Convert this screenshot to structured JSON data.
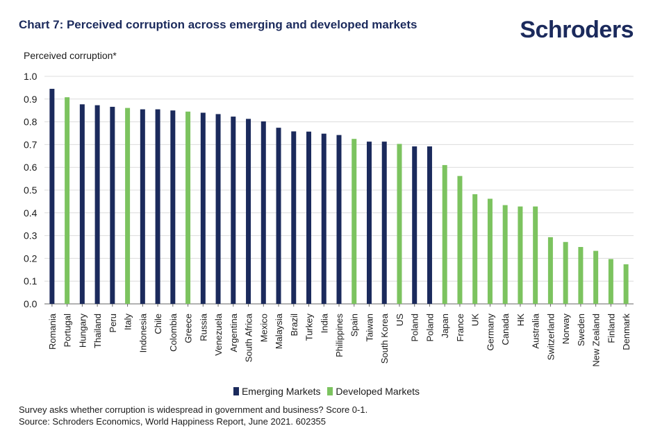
{
  "header": {
    "title": "Chart 7: Perceived corruption across emerging and developed markets",
    "brand": "Schroders"
  },
  "footer": {
    "note": "Survey asks whether corruption is widespread in government and business? Score 0-1.",
    "source": "Source: Schroders Economics, World Happiness Report, June 2021. 602355"
  },
  "colors": {
    "emerging": "#1b2a5c",
    "developed": "#7cc35f",
    "grid": "#dcdcdc"
  },
  "chart_data": {
    "type": "bar",
    "ylabel": "Perceived corruption*",
    "ylim": [
      0,
      1
    ],
    "yticks": [
      "0.0",
      "0.1",
      "0.2",
      "0.3",
      "0.4",
      "0.5",
      "0.6",
      "0.7",
      "0.8",
      "0.9",
      "1.0"
    ],
    "grid": true,
    "legend_position": "bottom",
    "categories": [
      "Romania",
      "Portugal",
      "Hungary",
      "Thailand",
      "Peru",
      "Italy",
      "Indonesia",
      "Chile",
      "Colombia",
      "Greece",
      "Russia",
      "Venezuela",
      "Argentina",
      "South Africa",
      "Mexico",
      "Malaysia",
      "Brazil",
      "Turkey",
      "India",
      "Philippines",
      "Spain",
      "Taiwan",
      "South Korea",
      "US",
      "Poland",
      "Poland",
      "Japan",
      "France",
      "UK",
      "Germany",
      "Canada",
      "HK",
      "Australia",
      "Switzerland",
      "Norway",
      "Sweden",
      "New Zealand",
      "Finland",
      "Denmark"
    ],
    "values": [
      0.945,
      0.908,
      0.877,
      0.873,
      0.866,
      0.861,
      0.855,
      0.855,
      0.85,
      0.845,
      0.84,
      0.834,
      0.823,
      0.813,
      0.802,
      0.774,
      0.758,
      0.757,
      0.748,
      0.742,
      0.725,
      0.713,
      0.713,
      0.703,
      0.692,
      0.692,
      0.61,
      0.562,
      0.482,
      0.462,
      0.434,
      0.428,
      0.428,
      0.293,
      0.272,
      0.25,
      0.233,
      0.197,
      0.174
    ],
    "groups": [
      "Emerging",
      "Developed",
      "Emerging",
      "Emerging",
      "Emerging",
      "Developed",
      "Emerging",
      "Emerging",
      "Emerging",
      "Developed",
      "Emerging",
      "Emerging",
      "Emerging",
      "Emerging",
      "Emerging",
      "Emerging",
      "Emerging",
      "Emerging",
      "Emerging",
      "Emerging",
      "Developed",
      "Emerging",
      "Emerging",
      "Developed",
      "Emerging",
      "Emerging",
      "Developed",
      "Developed",
      "Developed",
      "Developed",
      "Developed",
      "Developed",
      "Developed",
      "Developed",
      "Developed",
      "Developed",
      "Developed",
      "Developed",
      "Developed"
    ],
    "series": [
      {
        "name": "Emerging Markets",
        "key": "Emerging"
      },
      {
        "name": "Developed Markets",
        "key": "Developed"
      }
    ]
  }
}
